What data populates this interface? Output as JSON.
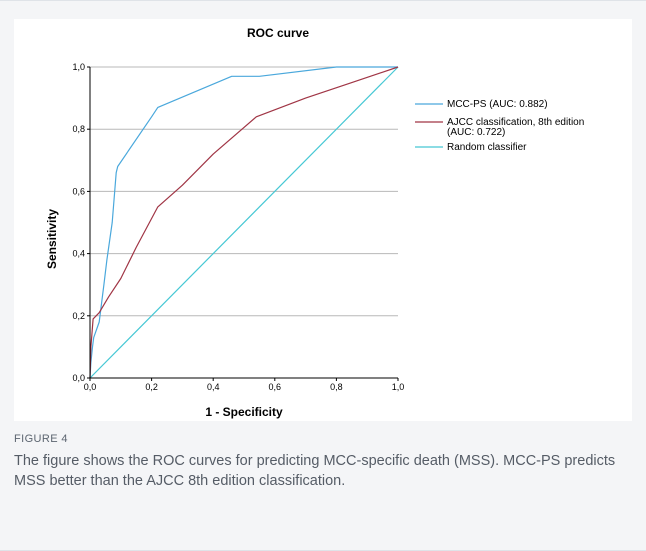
{
  "figure": {
    "label": "FIGURE 4",
    "caption": "The figure shows the ROC curves for predicting MCC-specific death (MSS). MCC-PS predicts MSS better than the AJCC 8th edition classification."
  },
  "chart_data": {
    "type": "line",
    "title": "ROC curve",
    "xlabel": "1 - Specificity",
    "ylabel": "Sensitivity",
    "xlim": [
      0,
      1
    ],
    "ylim": [
      0,
      1
    ],
    "xticks": [
      0,
      0.2,
      0.4,
      0.6,
      0.8,
      1.0
    ],
    "yticks": [
      0,
      0.2,
      0.4,
      0.6,
      0.8,
      1.0
    ],
    "xtick_labels": [
      "0,0",
      "0,2",
      "0,4",
      "0,6",
      "0,8",
      "1,0"
    ],
    "ytick_labels": [
      "0,0",
      "0,2",
      "0,4",
      "0,6",
      "0,8",
      "1,0"
    ],
    "grid": "horizontal",
    "legend_position": "right",
    "series": [
      {
        "name": "MCC-PS (AUC: 0.882)",
        "color": "#4aa8dc",
        "x": [
          0,
          0.003,
          0.008,
          0.012,
          0.03,
          0.045,
          0.055,
          0.065,
          0.072,
          0.085,
          0.09,
          0.2,
          0.22,
          0.46,
          0.55,
          0.8,
          1.0
        ],
        "y": [
          0,
          0.05,
          0.1,
          0.13,
          0.18,
          0.3,
          0.38,
          0.45,
          0.5,
          0.66,
          0.68,
          0.84,
          0.87,
          0.97,
          0.97,
          1.0,
          1.0
        ]
      },
      {
        "name": "AJCC classification, 8th edition (AUC: 0.722)",
        "color": "#a03545",
        "x": [
          0,
          0.003,
          0.01,
          0.03,
          0.06,
          0.1,
          0.15,
          0.22,
          0.3,
          0.4,
          0.54,
          0.7,
          0.85,
          1.0
        ],
        "y": [
          0,
          0.1,
          0.19,
          0.21,
          0.26,
          0.32,
          0.42,
          0.55,
          0.62,
          0.72,
          0.84,
          0.9,
          0.95,
          1.0
        ]
      },
      {
        "name": "Random classifier",
        "color": "#46c8d4",
        "x": [
          0,
          1
        ],
        "y": [
          0,
          1
        ]
      }
    ]
  }
}
